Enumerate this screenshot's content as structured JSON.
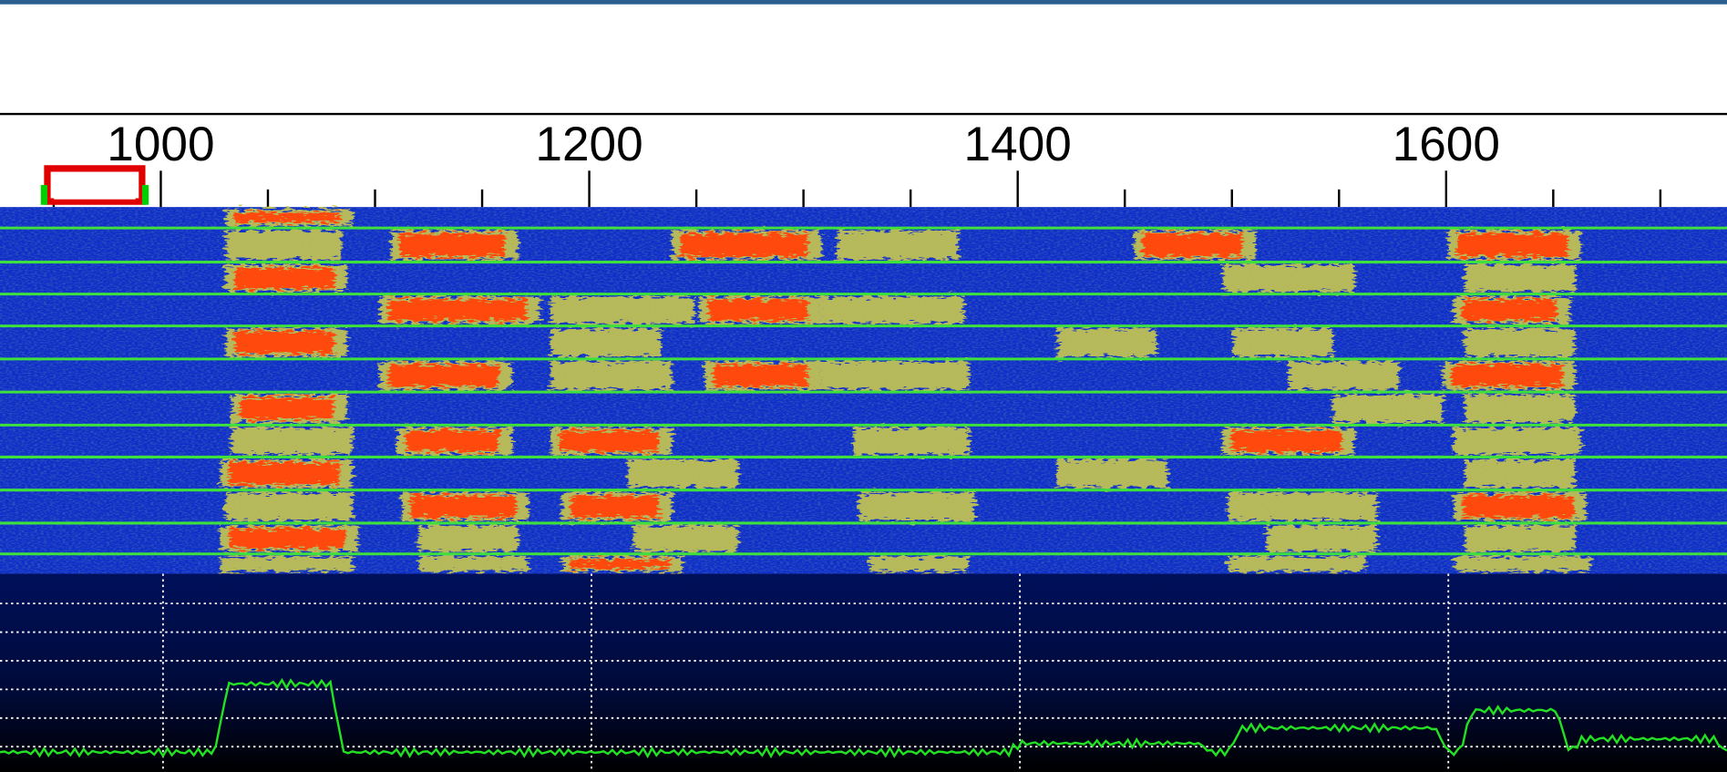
{
  "frequency_scale": {
    "labels": [
      1000,
      1200,
      1400,
      1600
    ]
  }
}
